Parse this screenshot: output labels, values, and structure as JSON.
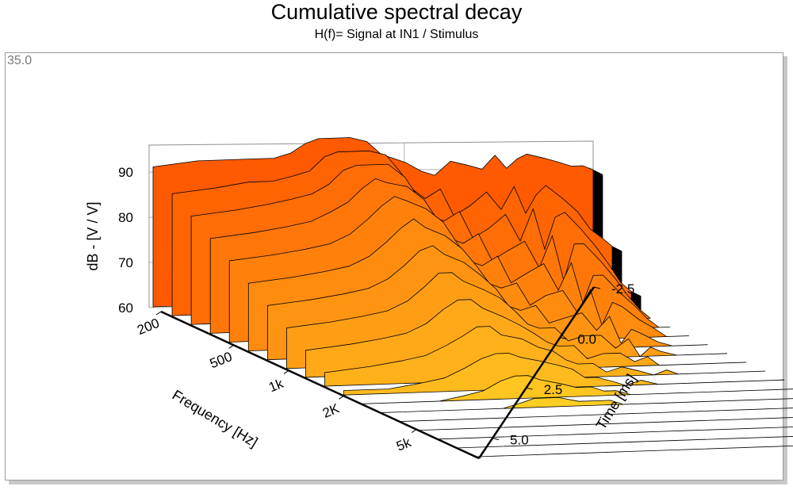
{
  "colors": {
    "ridge_front": "#ffff33",
    "ridge_back": "#ff5a00",
    "ridge_side": "#000000",
    "outline": "#000000",
    "frame": "#9a9a9a"
  },
  "corner_value": "35.0",
  "chart_data": {
    "type": "area",
    "subtype": "3d waterfall",
    "title": "Cumulative spectral decay",
    "subtitle": "H(f)= Signal at IN1 / Stimulus",
    "xlabel": "Frequency [Hz]",
    "ylabel": "Time [ms]",
    "zlabel": "dB - [V / V]",
    "x_scale": "log",
    "xlim": [
      200,
      11000
    ],
    "ylim": [
      -2.5,
      6.0
    ],
    "zlim": [
      60,
      96
    ],
    "x_ticks": [
      "200",
      "500",
      "1k",
      "2K",
      "5k"
    ],
    "x_tick_values": [
      200,
      500,
      1000,
      2000,
      5000
    ],
    "y_ticks": [
      "-2.5",
      "0.0",
      "2.5",
      "5.0"
    ],
    "y_tick_values": [
      -2.5,
      0.0,
      2.5,
      5.0
    ],
    "z_ticks": [
      "60",
      "70",
      "80",
      "90"
    ],
    "z_tick_values": [
      60,
      70,
      80,
      90
    ],
    "grid": true,
    "legend": "none",
    "frequencies": [
      200,
      300,
      400,
      500,
      600,
      700,
      800,
      900,
      1000,
      1200,
      1400,
      1600,
      1800,
      2000,
      2300,
      2600,
      3000,
      3500,
      4000,
      4500,
      5000,
      5500,
      6000,
      7000,
      8000,
      9000,
      10000,
      11000
    ],
    "slice_times_ms": [
      -2.5,
      -2.0,
      -1.5,
      -1.0,
      -0.5,
      0.0,
      0.5,
      1.0,
      1.5,
      2.0,
      2.5,
      3.0,
      3.5,
      4.0,
      4.5,
      5.0,
      5.5,
      6.0
    ],
    "slices_db": [
      [
        91,
        92,
        92,
        92,
        92,
        93,
        95,
        96,
        96,
        96,
        95,
        92,
        91,
        90,
        88,
        87,
        90,
        89,
        88,
        91,
        88,
        90,
        91,
        90,
        89,
        88,
        88,
        87
      ],
      [
        87,
        88,
        89,
        89,
        90,
        91,
        94,
        95,
        95,
        95,
        94,
        90,
        86,
        84,
        86,
        80,
        82,
        85,
        81,
        86,
        80,
        84,
        86,
        83,
        80,
        76,
        74,
        72
      ],
      [
        84,
        85,
        86,
        87,
        88,
        90,
        93,
        94,
        94,
        94,
        91,
        86,
        82,
        81,
        83,
        77,
        79,
        82,
        76,
        83,
        74,
        81,
        82,
        78,
        74,
        70,
        66,
        64
      ],
      [
        81,
        82,
        83,
        84,
        86,
        88,
        91,
        93,
        92,
        91,
        88,
        83,
        79,
        78,
        80,
        74,
        76,
        78,
        72,
        79,
        69,
        77,
        77,
        73,
        69,
        65,
        62,
        60
      ],
      [
        78,
        79,
        80,
        81,
        83,
        86,
        89,
        91,
        90,
        88,
        85,
        80,
        76,
        75,
        77,
        71,
        73,
        75,
        69,
        75,
        66,
        72,
        72,
        68,
        65,
        62,
        60,
        60
      ],
      [
        75,
        76,
        77,
        78,
        80,
        83,
        86,
        88,
        86,
        84,
        81,
        77,
        73,
        72,
        73,
        68,
        70,
        71,
        66,
        71,
        63,
        68,
        67,
        64,
        62,
        60,
        60,
        60
      ],
      [
        72,
        73,
        74,
        75,
        77,
        80,
        83,
        84,
        82,
        80,
        77,
        74,
        70,
        69,
        70,
        66,
        67,
        68,
        64,
        67,
        61,
        64,
        63,
        61,
        60,
        60,
        60,
        60
      ],
      [
        69,
        70,
        71,
        72,
        74,
        77,
        80,
        80,
        78,
        76,
        74,
        71,
        68,
        67,
        67,
        64,
        65,
        65,
        62,
        64,
        60,
        62,
        61,
        60,
        60,
        60,
        60,
        60
      ],
      [
        66,
        67,
        68,
        69,
        71,
        74,
        76,
        76,
        74,
        72,
        70,
        68,
        66,
        65,
        65,
        62,
        63,
        63,
        61,
        62,
        60,
        60,
        60,
        60,
        60,
        60,
        60,
        60
      ],
      [
        63,
        64,
        65,
        66,
        68,
        70,
        72,
        72,
        70,
        69,
        67,
        66,
        64,
        63,
        63,
        61,
        62,
        61,
        60,
        61,
        60,
        60,
        60,
        60,
        60,
        60,
        60,
        60
      ],
      [
        61,
        61,
        62,
        63,
        65,
        67,
        68,
        68,
        67,
        66,
        65,
        64,
        62,
        62,
        61,
        60,
        61,
        60,
        60,
        60,
        60,
        60,
        60,
        60,
        60,
        60,
        60,
        60
      ],
      [
        60,
        60,
        60,
        61,
        62,
        64,
        65,
        65,
        64,
        63,
        62,
        62,
        61,
        61,
        60,
        60,
        60,
        60,
        60,
        60,
        60,
        60,
        60,
        60,
        60,
        60,
        60,
        60
      ],
      [
        60,
        60,
        60,
        60,
        60,
        61,
        62,
        62,
        62,
        61,
        61,
        61,
        60,
        60,
        60,
        60,
        60,
        60,
        60,
        60,
        60,
        60,
        60,
        60,
        60,
        60,
        60,
        60
      ],
      [
        60,
        60,
        60,
        60,
        60,
        60,
        60,
        60,
        60,
        60,
        60,
        60,
        60,
        60,
        60,
        60,
        60,
        60,
        60,
        60,
        60,
        60,
        60,
        60,
        60,
        60,
        60,
        60
      ],
      [
        60,
        60,
        60,
        60,
        60,
        60,
        60,
        60,
        60,
        60,
        60,
        60,
        60,
        60,
        60,
        60,
        60,
        60,
        60,
        60,
        60,
        60,
        60,
        60,
        60,
        60,
        60,
        60
      ],
      [
        60,
        60,
        60,
        60,
        60,
        60,
        60,
        60,
        60,
        60,
        60,
        60,
        60,
        60,
        60,
        60,
        60,
        60,
        60,
        60,
        60,
        60,
        60,
        60,
        60,
        60,
        60,
        60
      ],
      [
        60,
        60,
        60,
        60,
        60,
        60,
        60,
        60,
        60,
        60,
        60,
        60,
        60,
        60,
        60,
        60,
        60,
        60,
        60,
        60,
        60,
        60,
        60,
        60,
        60,
        60,
        60,
        60
      ],
      [
        60,
        60,
        60,
        60,
        60,
        60,
        60,
        60,
        60,
        60,
        60,
        60,
        60,
        60,
        60,
        60,
        60,
        60,
        60,
        60,
        60,
        60,
        60,
        60,
        60,
        60,
        60,
        60
      ]
    ]
  }
}
